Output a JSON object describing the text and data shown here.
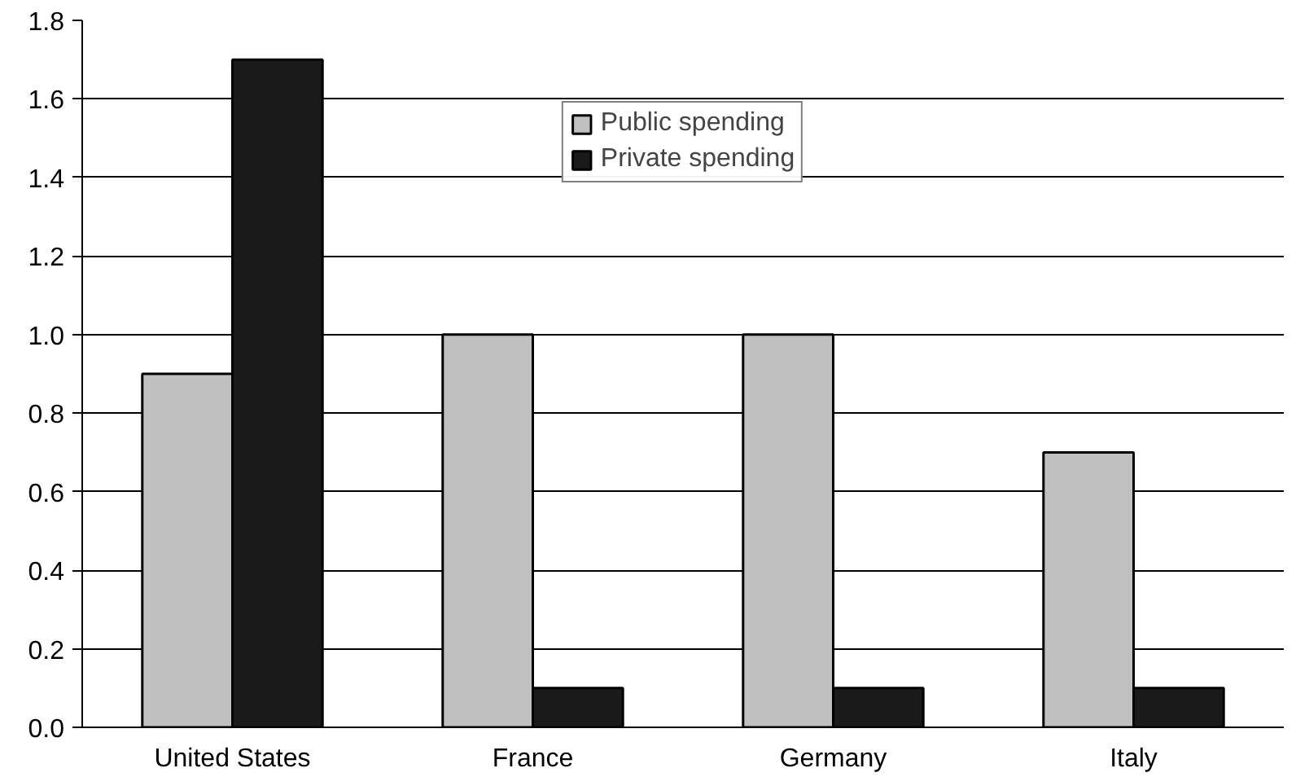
{
  "chart_data": {
    "type": "bar",
    "categories": [
      "United States",
      "France",
      "Germany",
      "Italy"
    ],
    "series": [
      {
        "name": "Public spending",
        "color": "#c0c0c0",
        "values": [
          0.9,
          1.0,
          1.0,
          0.7
        ]
      },
      {
        "name": "Private spending",
        "color": "#1a1a1a",
        "values": [
          1.7,
          0.1,
          0.1,
          0.1
        ]
      }
    ],
    "ylim": [
      0,
      1.8
    ],
    "yticks": [
      {
        "value": 0,
        "label": "0.0"
      },
      0.2,
      0.4,
      0.6,
      0.8,
      {
        "value": 1,
        "label": "1.0"
      },
      1.2,
      1.4,
      1.6,
      1.8
    ],
    "grid": "y",
    "legend": "top"
  }
}
